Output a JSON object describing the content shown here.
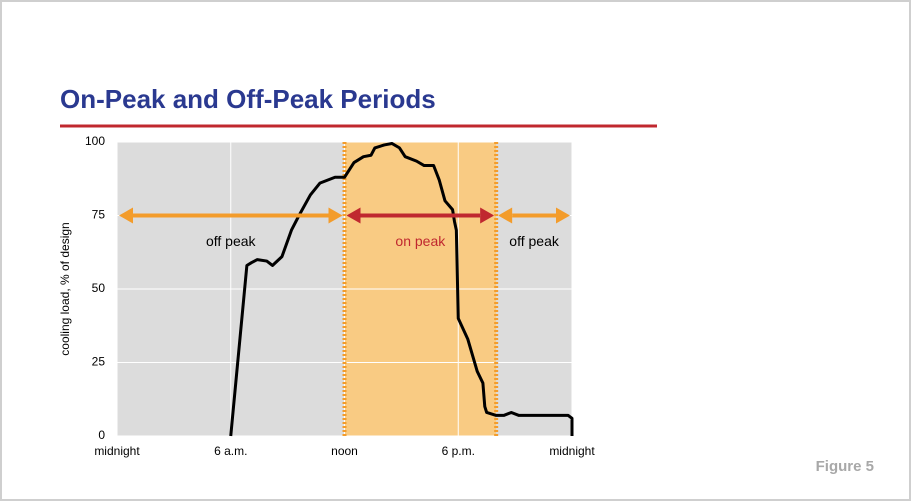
{
  "chart_data": {
    "type": "line",
    "title": "On-Peak and Off-Peak Periods",
    "ylabel": "cooling load, % of design",
    "caption": "Figure 5",
    "x": [
      6.0,
      6.85,
      7.1,
      7.4,
      7.9,
      8.2,
      8.7,
      9.2,
      9.6,
      10.2,
      10.7,
      11.5,
      12,
      12.5,
      13.0,
      13.4,
      13.6,
      14.1,
      14.5,
      14.9,
      15.2,
      15.8,
      16.2,
      16.7,
      17.0,
      17.3,
      17.7,
      17.8,
      17.9,
      18.0,
      18.5,
      19.0,
      19.3,
      19.4,
      19.5,
      20.0,
      20.4,
      20.8,
      21.2,
      23.8,
      24,
      24
    ],
    "values": [
      0,
      58,
      59,
      60,
      59.5,
      58,
      61,
      70,
      75,
      82,
      86,
      88,
      88,
      93,
      95,
      95.5,
      98,
      99,
      99.5,
      98,
      95,
      93.5,
      92,
      92,
      87,
      80,
      77,
      73,
      70,
      40,
      33,
      22,
      18,
      10,
      8,
      7,
      7,
      8,
      7,
      7,
      6,
      0
    ],
    "color": "#000000",
    "xlim": [
      0,
      24
    ],
    "ylim": [
      0,
      100
    ],
    "xticks": [
      {
        "value": 0,
        "label": "midnight"
      },
      {
        "value": 6,
        "label": "6 a.m."
      },
      {
        "value": 12,
        "label": "noon"
      },
      {
        "value": 18,
        "label": "6 p.m."
      },
      {
        "value": 24,
        "label": "midnight"
      }
    ],
    "yticks": [
      0,
      25,
      50,
      75,
      100
    ],
    "grid": true,
    "periods": [
      {
        "label": "off peak",
        "start": 0,
        "end": 12,
        "y": 75,
        "color": "#f39c2b",
        "shaded": false
      },
      {
        "label": "on peak",
        "start": 12,
        "end": 20,
        "y": 75,
        "color": "#c0282f",
        "shaded": true
      },
      {
        "label": "off peak",
        "start": 20,
        "end": 24,
        "y": 75,
        "color": "#f39c2b",
        "shaded": false
      }
    ]
  }
}
